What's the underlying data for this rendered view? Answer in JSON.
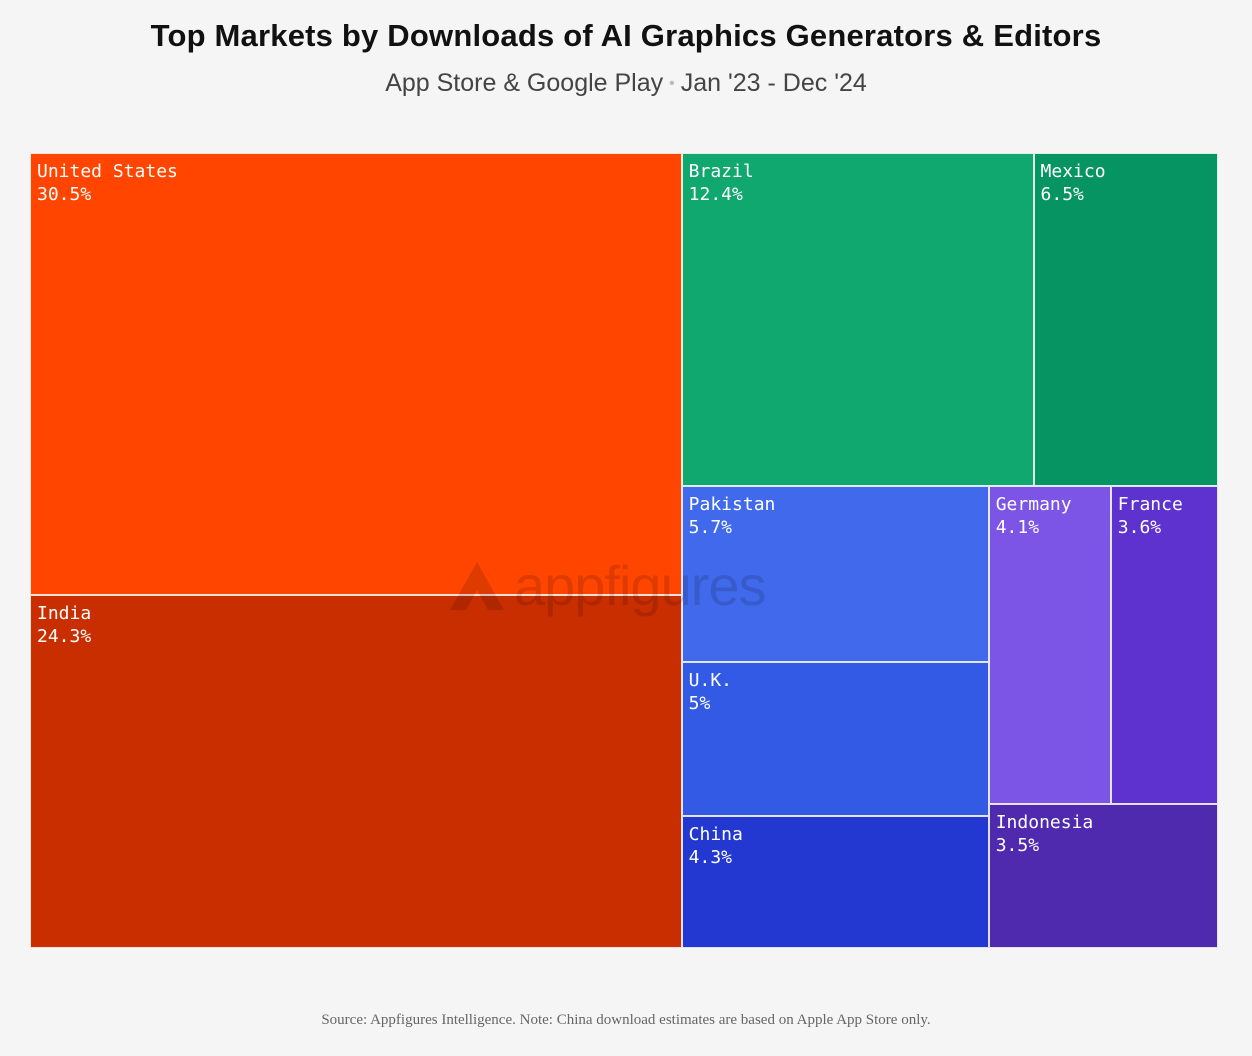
{
  "header": {
    "title": "Top Markets by Downloads of AI Graphics Generators & Editors",
    "subtitle_left": "App Store & Google Play",
    "subtitle_sep": "•",
    "subtitle_right": "Jan '23 - Dec '24"
  },
  "watermark": {
    "text": "appfigures"
  },
  "footer": {
    "source": "Source: Appfigures Intelligence.  Note: China download estimates are based on Apple App Store only."
  },
  "chart_data": {
    "type": "treemap",
    "items": [
      {
        "label": "United States",
        "value": 30.5,
        "display": "30.5%",
        "color": "#ff4500"
      },
      {
        "label": "India",
        "value": 24.3,
        "display": "24.3%",
        "color": "#c92e00"
      },
      {
        "label": "Brazil",
        "value": 12.4,
        "display": "12.4%",
        "color": "#10a86e"
      },
      {
        "label": "Mexico",
        "value": 6.5,
        "display": "6.5%",
        "color": "#069463"
      },
      {
        "label": "Pakistan",
        "value": 5.7,
        "display": "5.7%",
        "color": "#4169ec"
      },
      {
        "label": "U.K.",
        "value": 5,
        "display": "5%",
        "color": "#335ae4"
      },
      {
        "label": "China",
        "value": 4.3,
        "display": "4.3%",
        "color": "#2338d1"
      },
      {
        "label": "Germany",
        "value": 4.1,
        "display": "4.1%",
        "color": "#7d55e6"
      },
      {
        "label": "France",
        "value": 3.6,
        "display": "3.6%",
        "color": "#5e32cf"
      },
      {
        "label": "Indonesia",
        "value": 3.5,
        "display": "3.5%",
        "color": "#4f29ae"
      }
    ]
  }
}
